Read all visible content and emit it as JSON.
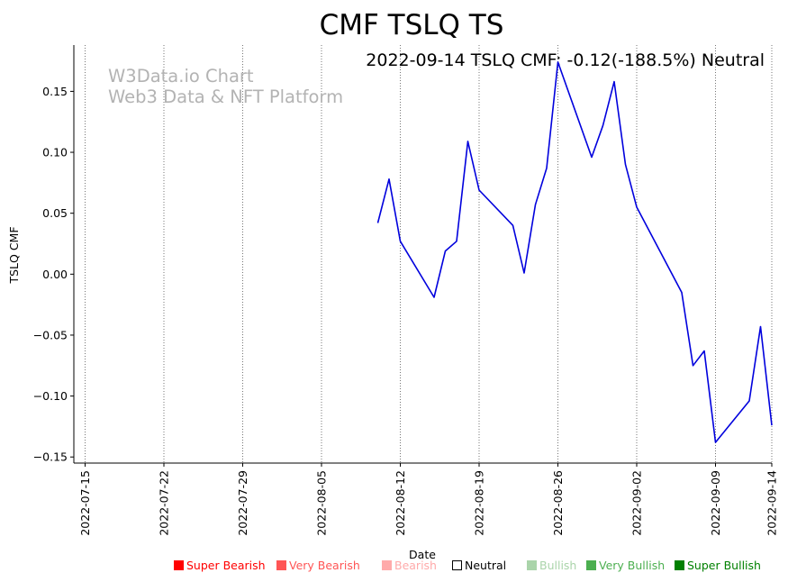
{
  "chart_data": {
    "type": "line",
    "title": "CMF TSLQ TS",
    "subtitle": "2022-09-14 TSLQ CMF: -0.12(-188.5%) Neutral",
    "watermark": [
      "W3Data.io Chart",
      "Web3 Data & NFT Platform"
    ],
    "xlabel": "Date",
    "ylabel": "TSLQ CMF",
    "xlim": [
      "2022-07-14",
      "2022-09-14"
    ],
    "ylim": [
      -0.155,
      0.188
    ],
    "x_ticks": [
      "2022-07-15",
      "2022-07-22",
      "2022-07-29",
      "2022-08-05",
      "2022-08-12",
      "2022-08-19",
      "2022-08-26",
      "2022-09-02",
      "2022-09-09",
      "2022-09-14"
    ],
    "y_ticks": [
      -0.15,
      -0.1,
      -0.05,
      0.0,
      0.05,
      0.1,
      0.15
    ],
    "y_tick_labels": [
      "−0.15",
      "−0.10",
      "−0.05",
      "0.00",
      "0.05",
      "0.10",
      "0.15"
    ],
    "grid": "vertical dotted at x ticks",
    "line_color": "#0000dd",
    "series": [
      {
        "x": [
          "2022-08-10",
          "2022-08-11",
          "2022-08-12",
          "2022-08-15",
          "2022-08-16",
          "2022-08-17",
          "2022-08-18",
          "2022-08-19",
          "2022-08-22",
          "2022-08-23",
          "2022-08-24",
          "2022-08-25",
          "2022-08-26",
          "2022-08-29",
          "2022-08-30",
          "2022-08-31",
          "2022-09-01",
          "2022-09-02",
          "2022-09-06",
          "2022-09-07",
          "2022-09-08",
          "2022-09-09",
          "2022-09-12",
          "2022-09-13",
          "2022-09-14"
        ],
        "values": [
          0.042,
          0.078,
          0.027,
          -0.019,
          0.019,
          0.027,
          0.109,
          0.069,
          0.04,
          0.001,
          0.057,
          0.087,
          0.174,
          0.096,
          0.122,
          0.158,
          0.09,
          0.055,
          -0.015,
          -0.075,
          -0.063,
          -0.138,
          -0.104,
          -0.043,
          -0.124
        ]
      }
    ],
    "legend": [
      {
        "label": "Super Bearish",
        "color": "#ff0000",
        "filled": true
      },
      {
        "label": "Very Bearish",
        "color": "#ff5555",
        "filled": true
      },
      {
        "label": "Bearish",
        "color": "#ffaaaa",
        "filled": true
      },
      {
        "label": "Neutral",
        "color": "#000000",
        "filled": false
      },
      {
        "label": "Bullish",
        "color": "#aad4aa",
        "filled": true
      },
      {
        "label": "Very Bullish",
        "color": "#4caf50",
        "filled": true
      },
      {
        "label": "Super Bullish",
        "color": "#008000",
        "filled": true
      }
    ]
  }
}
